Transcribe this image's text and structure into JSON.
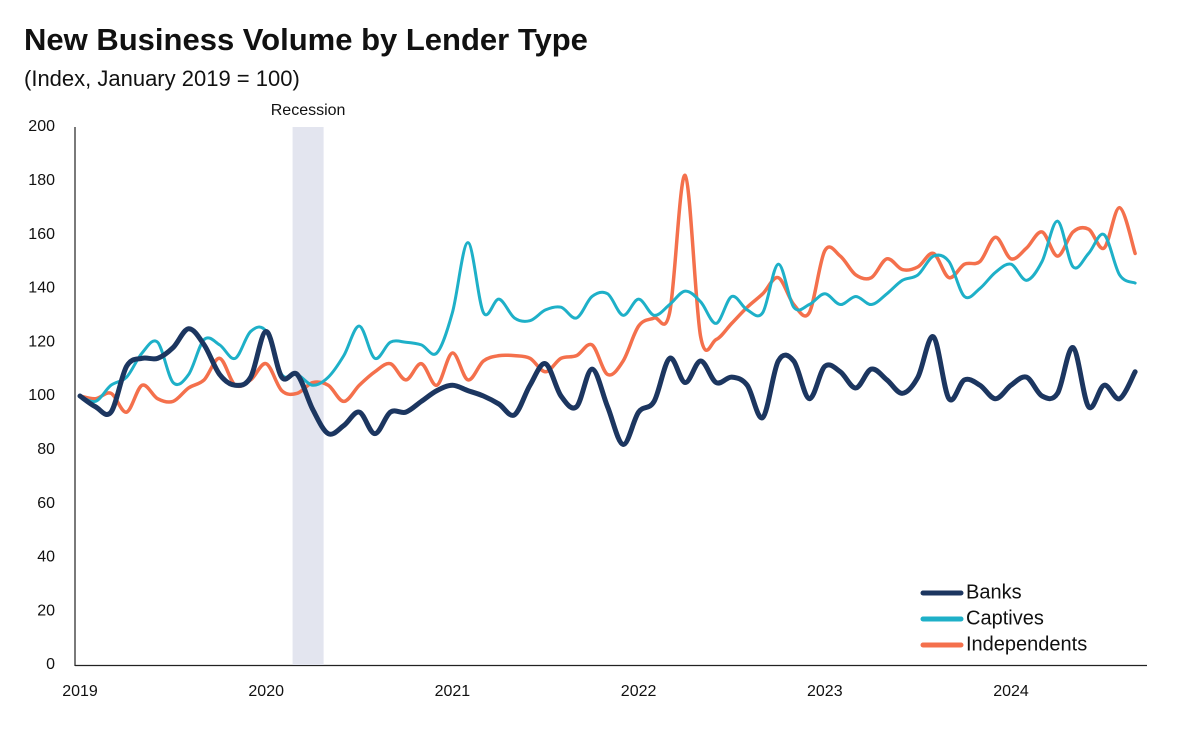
{
  "chart_data": {
    "type": "line",
    "title": "New Business Volume by Lender Type",
    "subtitle": "(Index, January 2019 = 100)",
    "categories": [
      "2019",
      null,
      null,
      null,
      null,
      null,
      null,
      null,
      null,
      null,
      null,
      null,
      "2020",
      null,
      null,
      null,
      null,
      null,
      null,
      null,
      null,
      null,
      null,
      null,
      "2021",
      null,
      null,
      null,
      null,
      null,
      null,
      null,
      null,
      null,
      null,
      null,
      "2022",
      null,
      null,
      null,
      null,
      null,
      null,
      null,
      null,
      null,
      null,
      null,
      "2023",
      null,
      null,
      null,
      null,
      null,
      null,
      null,
      null,
      null,
      null,
      null,
      "2024",
      null,
      null,
      null,
      null,
      null,
      null,
      null,
      null
    ],
    "series": [
      {
        "name": "Banks",
        "color": "#1c3660",
        "values": [
          100,
          96,
          94,
          111,
          114,
          114,
          118,
          125,
          119,
          108,
          104,
          107,
          124,
          107,
          108,
          95,
          86,
          89,
          94,
          86,
          94,
          94,
          98,
          102,
          104,
          102,
          100,
          97,
          93,
          104,
          112,
          100,
          96,
          110,
          96,
          82,
          94,
          98,
          114,
          105,
          113,
          105,
          107,
          104,
          92,
          113,
          113,
          99,
          111,
          109,
          103,
          110,
          106,
          101,
          107,
          122,
          99,
          106,
          104,
          99,
          104,
          107,
          100,
          101,
          118,
          96,
          104,
          99,
          109
        ]
      },
      {
        "name": "Captives",
        "color": "#1eb0c8",
        "values": [
          100,
          98,
          104,
          107,
          116,
          120,
          105,
          108,
          121,
          119,
          114,
          124,
          124,
          108,
          108,
          104,
          107,
          115,
          126,
          114,
          120,
          120,
          119,
          116,
          131,
          157,
          131,
          136,
          129,
          128,
          132,
          133,
          129,
          137,
          138,
          130,
          136,
          130,
          134,
          139,
          135,
          127,
          137,
          132,
          131,
          149,
          133,
          134,
          138,
          134,
          137,
          134,
          138,
          143,
          145,
          152,
          150,
          137,
          140,
          146,
          149,
          143,
          150,
          165,
          148,
          153,
          160,
          145,
          142
        ]
      },
      {
        "name": "Independents",
        "color": "#f4704c",
        "values": [
          100,
          99,
          101,
          94,
          104,
          99,
          98,
          103,
          106,
          114,
          104,
          106,
          112,
          102,
          101,
          105,
          104,
          98,
          104,
          109,
          112,
          106,
          112,
          104,
          116,
          106,
          113,
          115,
          115,
          114,
          109,
          114,
          115,
          119,
          108,
          113,
          126,
          129,
          131,
          182,
          122,
          121,
          127,
          133,
          138,
          144,
          134,
          131,
          154,
          152,
          145,
          144,
          151,
          147,
          148,
          153,
          144,
          149,
          150,
          159,
          151,
          155,
          161,
          152,
          161,
          162,
          155,
          170,
          153
        ]
      }
    ],
    "ylim": [
      0,
      200
    ],
    "yticks": [
      0,
      20,
      40,
      60,
      80,
      100,
      120,
      140,
      160,
      180,
      200
    ],
    "recession": {
      "label": "Recession",
      "start": 13.7,
      "end": 15.7
    },
    "grid": false,
    "legend": "bottom-right"
  }
}
